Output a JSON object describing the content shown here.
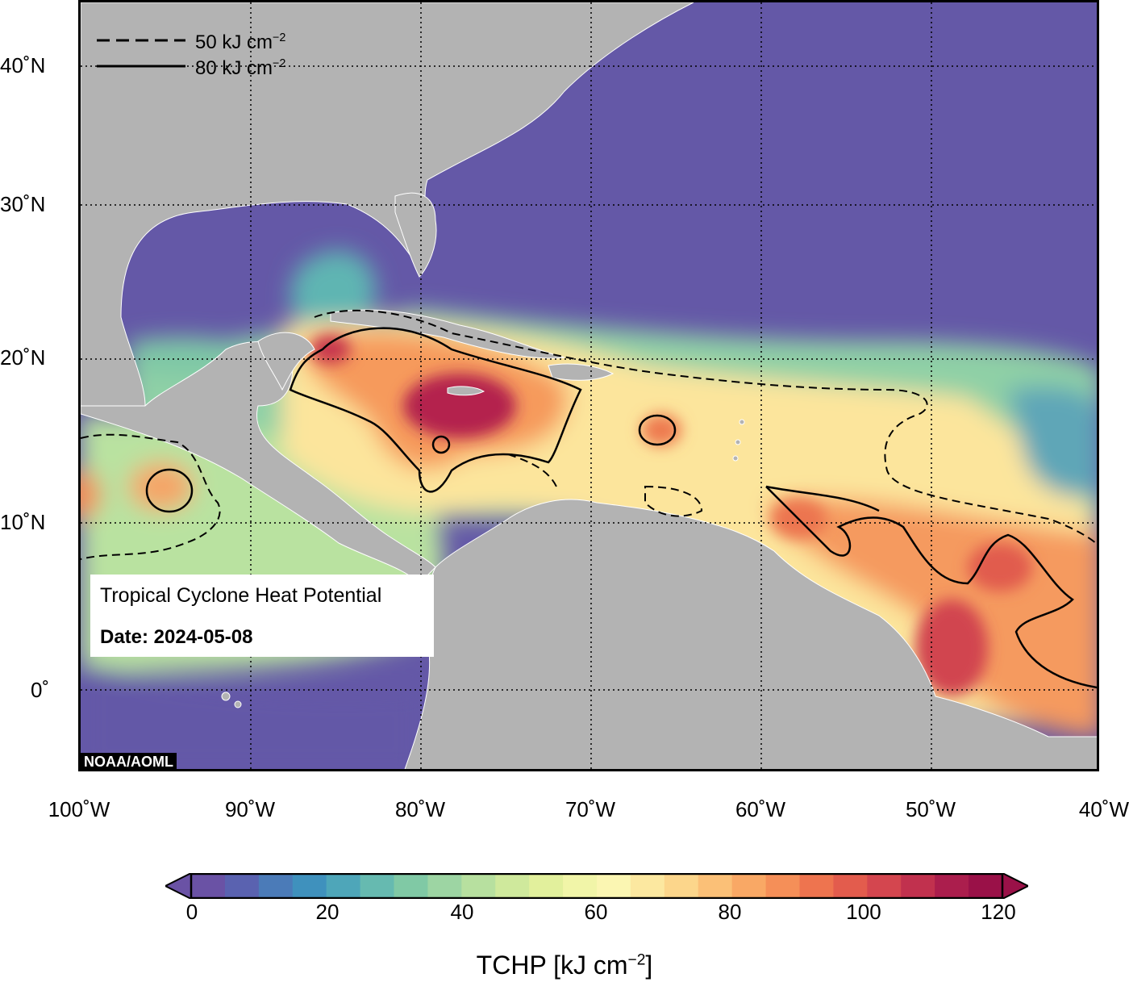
{
  "map": {
    "title": "Tropical Cyclone Heat Potential",
    "date_label": "Date: 2024-05-08",
    "credit": "NOAA/AOML",
    "lat_labels": [
      "40˚N",
      "30˚N",
      "20˚N",
      "10˚N",
      "0˚"
    ],
    "lon_labels": [
      "100˚W",
      "90˚W",
      "80˚W",
      "70˚W",
      "60˚W",
      "50˚W",
      "40˚W"
    ],
    "legend": [
      {
        "style": "dashed",
        "label": "50 kJ cm",
        "sup": "−2"
      },
      {
        "style": "solid",
        "label": "80 kJ cm",
        "sup": "−2"
      }
    ],
    "colors": {
      "ocean_low": "#6458a7",
      "land": "#b3b3b3"
    }
  },
  "colorbar": {
    "ticks": [
      "0",
      "20",
      "40",
      "60",
      "80",
      "100",
      "120"
    ],
    "title_main": "TCHP [kJ cm",
    "title_sup": "−2",
    "title_end": "]",
    "colors": [
      "#6a52a5",
      "#5a62b0",
      "#4b7bb8",
      "#3f91bd",
      "#4ea6b9",
      "#66bab0",
      "#80c9a5",
      "#9dd5a3",
      "#b7e09f",
      "#cfe99c",
      "#e2f09c",
      "#f1f5a8",
      "#fbf6b2",
      "#fce8a0",
      "#fcd68b",
      "#fbc077",
      "#f9a865",
      "#f58f58",
      "#ee744f",
      "#e35c4d",
      "#d4464f",
      "#c1314e",
      "#ab1e4d",
      "#9a1148"
    ]
  }
}
